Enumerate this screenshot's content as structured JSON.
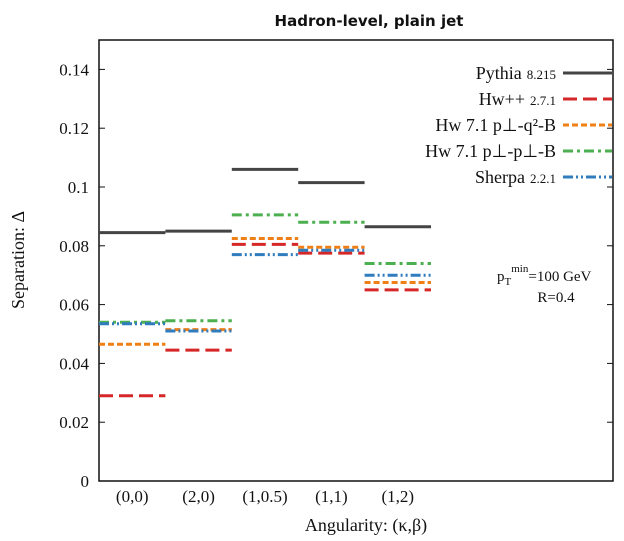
{
  "chart_data": {
    "type": "step",
    "title": "Hadron-level, plain jet",
    "xlabel": "Angularity: (κ,β)",
    "ylabel": "Separation: Δ",
    "categories": [
      "(0,0)",
      "(2,0)",
      "(1,0.5)",
      "(1,1)",
      "(1,2)"
    ],
    "ylim": [
      0,
      0.15
    ],
    "yticks": [
      "0",
      "0.02",
      "0.04",
      "0.06",
      "0.08",
      "0.1",
      "0.12",
      "0.14"
    ],
    "legend_position": "top-right",
    "series": [
      {
        "name": "Pythia",
        "version": "8.215",
        "color": "#444444",
        "dash": "solid",
        "values": [
          0.0845,
          0.085,
          0.106,
          0.1015,
          0.0865
        ]
      },
      {
        "name": "Hw++",
        "version": "2.7.1",
        "color": "#d62728",
        "dash": "long",
        "values": [
          0.029,
          0.0445,
          0.0805,
          0.0775,
          0.065
        ]
      },
      {
        "name": "Hw 7.1 p⊥-q²-B",
        "version": "",
        "color": "#f07f16",
        "dash": "short",
        "values": [
          0.0465,
          0.0515,
          0.0825,
          0.0795,
          0.0675
        ]
      },
      {
        "name": "Hw 7.1 p⊥-p⊥-B",
        "version": "",
        "color": "#4caf50",
        "dash": "dashdot",
        "values": [
          0.054,
          0.0545,
          0.0905,
          0.088,
          0.074
        ]
      },
      {
        "name": "Sherpa",
        "version": "2.2.1",
        "color": "#2f7cbf",
        "dash": "dashdotdot",
        "values": [
          0.0535,
          0.051,
          0.077,
          0.0785,
          0.07
        ]
      }
    ],
    "annotations": {
      "ptmin_symbol": "p",
      "ptmin_sub": "T",
      "ptmin_sup": "min",
      "ptmin_value": "=100 GeV",
      "radius": "R=0.4"
    }
  }
}
